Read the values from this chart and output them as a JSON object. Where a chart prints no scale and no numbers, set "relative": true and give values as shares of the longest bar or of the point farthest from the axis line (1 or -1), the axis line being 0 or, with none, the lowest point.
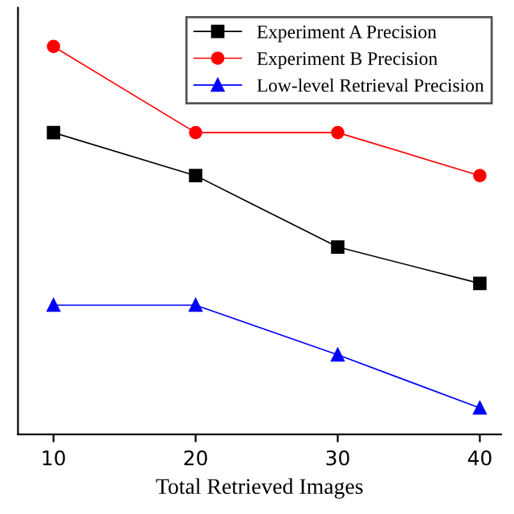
{
  "chart_data": {
    "type": "line",
    "xlabel": "Total Retrieved Images",
    "relative": true,
    "x": [
      10,
      20,
      30,
      40
    ],
    "xlim": [
      7.5,
      41.5
    ],
    "xticks": [
      10,
      20,
      30,
      40
    ],
    "series": [
      {
        "name": "Experiment A Precision",
        "color": "#000000",
        "marker": "square",
        "values": [
          0.778,
          0.667,
          0.483,
          0.389
        ]
      },
      {
        "name": "Experiment B Precision",
        "color": "#ff0000",
        "marker": "circle",
        "values": [
          1,
          0.778,
          0.778,
          0.667
        ]
      },
      {
        "name": "Low-level Retrieval Precision",
        "color": "#0000ff",
        "marker": "triangle",
        "values": [
          0.333,
          0.333,
          0.205,
          0.068
        ]
      }
    ],
    "legend": "top right",
    "grid": false,
    "line_style": "solid"
  }
}
